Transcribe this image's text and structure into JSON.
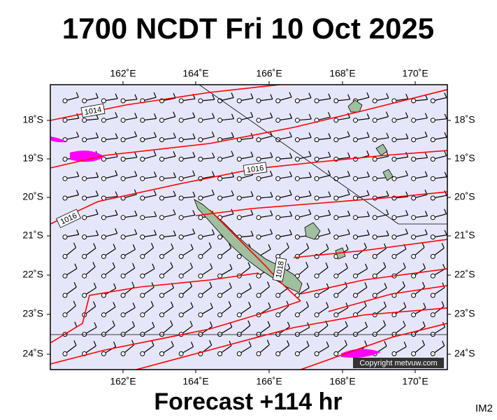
{
  "title": "1700 NCDT Fri 10 Oct 2025",
  "longitude_labels": [
    "162˚E",
    "164˚E",
    "166˚E",
    "168˚E",
    "170˚E"
  ],
  "latitude_labels": [
    "18˚S",
    "19˚S",
    "20˚S",
    "21˚S",
    "22˚S",
    "23˚S",
    "24˚S"
  ],
  "isobar_labels": [
    "1014",
    "1016",
    "1016",
    "1018"
  ],
  "copyright": "Copyright metvuw.com",
  "footer": "Forecast +114 hr",
  "corner_label": "IM2"
}
